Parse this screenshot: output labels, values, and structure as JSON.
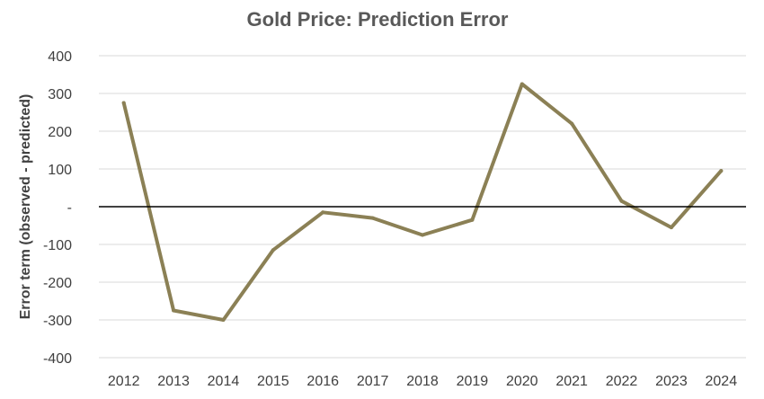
{
  "chart_data": {
    "type": "line",
    "title": "Gold Price: Prediction Error",
    "ylabel": "Error term (observed - predicted)",
    "xlabel": "",
    "x": [
      "2012",
      "2013",
      "2014",
      "2015",
      "2016",
      "2017",
      "2018",
      "2019",
      "2020",
      "2021",
      "2022",
      "2023",
      "2024"
    ],
    "series": [
      {
        "values": [
          275,
          -275,
          -300,
          -115,
          -15,
          -30,
          -75,
          -35,
          325,
          220,
          15,
          -55,
          95
        ]
      }
    ],
    "ylim": [
      -400,
      400
    ],
    "yticks": [
      400,
      300,
      200,
      100,
      0,
      -100,
      -200,
      -300,
      -400
    ],
    "ytick_labels": [
      "400",
      "300",
      "200",
      "100",
      "-",
      "-100",
      "-200",
      "-300",
      "-400"
    ],
    "grid": true,
    "zero_line": true,
    "line_color": "#8B8055"
  }
}
